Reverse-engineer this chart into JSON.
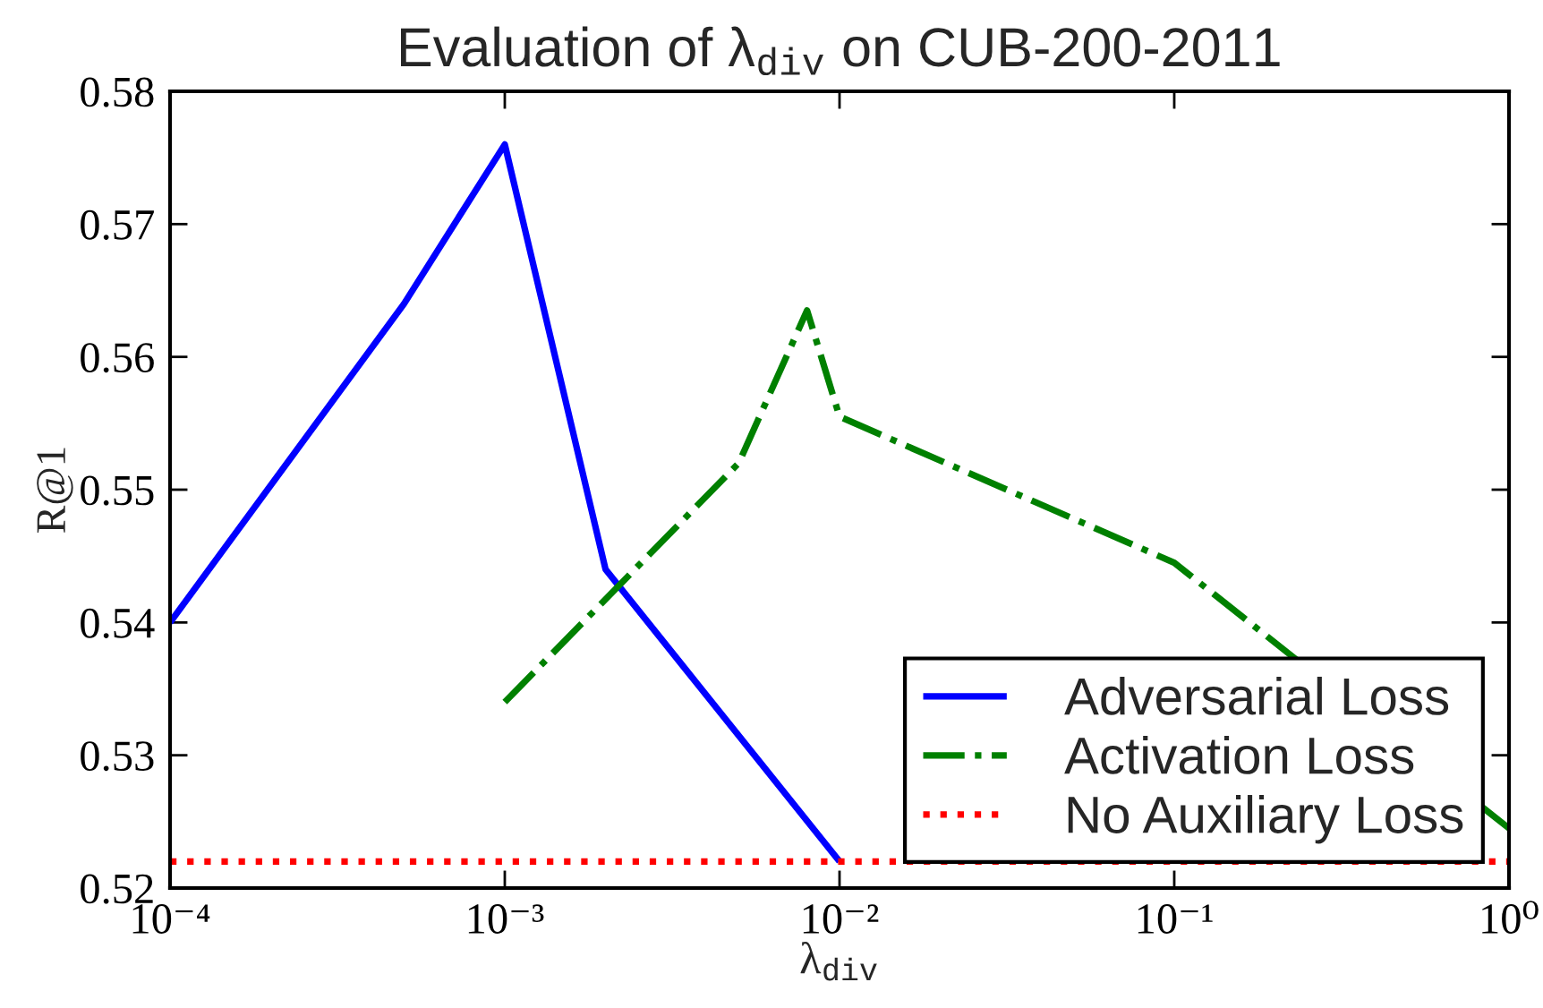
{
  "chart_data": {
    "type": "line",
    "title": "Evaluation of λ$_{div}$ on CUB-200-2011",
    "xlabel": "λ$_{div}$",
    "ylabel": "R@1",
    "log": "x",
    "xlim": [
      0.0001,
      1
    ],
    "xticks": [
      {
        "value": 0.0001,
        "label": "10⁻⁴"
      },
      {
        "value": 0.001,
        "label": "10⁻³"
      },
      {
        "value": 0.01,
        "label": "10⁻²"
      },
      {
        "value": 0.1,
        "label": "10⁻¹"
      },
      {
        "value": 1,
        "label": "10⁰"
      }
    ],
    "ylim": [
      0.52,
      0.58
    ],
    "yticks": [
      0.52,
      0.53,
      0.54,
      0.55,
      0.56,
      0.57,
      0.58
    ],
    "legend": "bottom right",
    "series": [
      {
        "name": "Adversarial Loss",
        "color": "#0000ff",
        "line_style": "solid",
        "x": [
          0.0001,
          0.0005,
          0.001,
          0.002,
          0.01
        ],
        "values": [
          0.54,
          0.564,
          0.576,
          0.544,
          0.522
        ]
      },
      {
        "name": "Activation Loss",
        "color": "#008000",
        "line_style": "dashdot",
        "x": [
          0.001,
          0.005,
          0.008,
          0.01,
          0.1,
          1
        ],
        "values": [
          0.534,
          0.552,
          0.5635,
          0.5555,
          0.5445,
          0.5245
        ]
      },
      {
        "name": "No Auxiliary Loss",
        "color": "#ff0000",
        "line_style": "dotted",
        "x": [
          0.0001,
          1
        ],
        "values": [
          0.522,
          0.522
        ]
      }
    ]
  }
}
